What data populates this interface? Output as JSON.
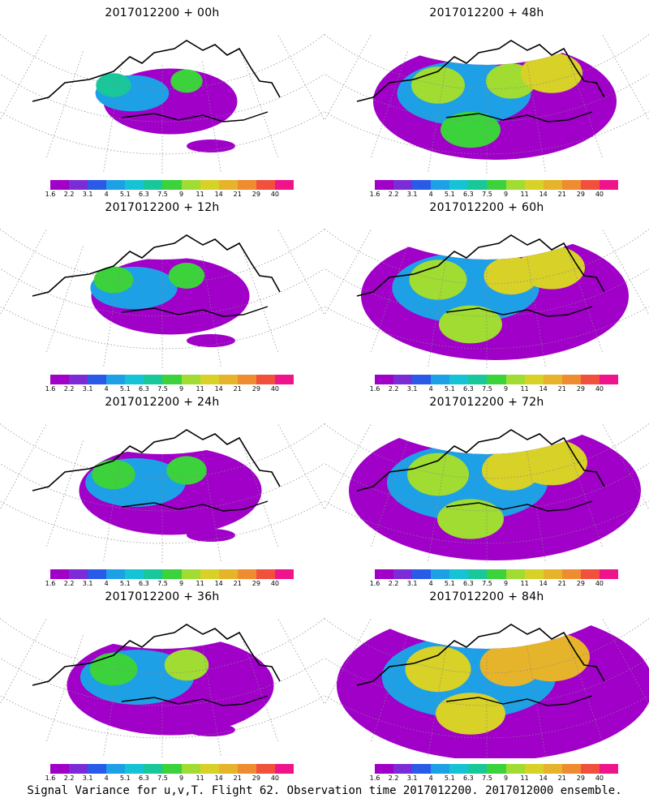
{
  "panels": [
    {
      "title": "2017012200 + 00h",
      "intensity": 0.15
    },
    {
      "title": "2017012200 + 48h",
      "intensity": 0.6
    },
    {
      "title": "2017012200 + 12h",
      "intensity": 0.25
    },
    {
      "title": "2017012200 + 60h",
      "intensity": 0.7
    },
    {
      "title": "2017012200 + 24h",
      "intensity": 0.35
    },
    {
      "title": "2017012200 + 72h",
      "intensity": 0.8
    },
    {
      "title": "2017012200 + 36h",
      "intensity": 0.45
    },
    {
      "title": "2017012200 + 84h",
      "intensity": 0.9
    }
  ],
  "colorbar": {
    "labels": [
      "1.6",
      "2.2",
      "3.1",
      "4",
      "5.1",
      "6.3",
      "7.5",
      "9",
      "11",
      "14",
      "21",
      "29",
      "40"
    ],
    "colors": [
      "#a000c8",
      "#7b2cd6",
      "#2a5ae8",
      "#1ea0e6",
      "#16c3d4",
      "#18c79a",
      "#3cd23c",
      "#a0dc32",
      "#d7d128",
      "#e6b42a",
      "#ef8c30",
      "#f0503c",
      "#f0148c"
    ]
  },
  "footer": "Signal Variance for u,v,T. Flight 62. Observation time 2017012200. 2017012000 ensemble."
}
